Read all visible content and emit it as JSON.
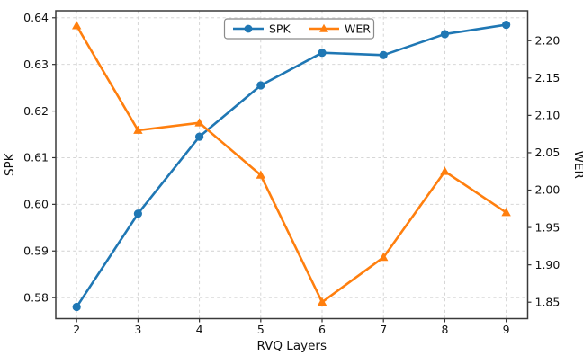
{
  "chart_data": {
    "type": "line",
    "title": "",
    "grid": true,
    "legend_position": "top-center",
    "legend_entries": [
      "SPK",
      "WER"
    ],
    "x_axis": {
      "label": "RVQ Layers",
      "ticks": [
        2,
        3,
        4,
        5,
        6,
        7,
        8,
        9
      ],
      "lim": [
        1.66,
        9.35
      ]
    },
    "left_axis": {
      "label": "SPK",
      "ticks": [
        0.58,
        0.59,
        0.6,
        0.61,
        0.62,
        0.63,
        0.64
      ],
      "lim": [
        0.5755,
        0.6415
      ],
      "tick_decimals": 2
    },
    "right_axis": {
      "label": "WER",
      "ticks": [
        1.85,
        1.9,
        1.95,
        2.0,
        2.05,
        2.1,
        2.15,
        2.2
      ],
      "lim": [
        1.828,
        2.24
      ],
      "tick_decimals": 2
    },
    "x": [
      2,
      3,
      4,
      5,
      6,
      7,
      8,
      9
    ],
    "series": [
      {
        "name": "SPK",
        "axis": "left",
        "color": "#1f77b4",
        "marker": "circle",
        "values": [
          0.578,
          0.598,
          0.6145,
          0.6255,
          0.6325,
          0.632,
          0.6365,
          0.6385
        ]
      },
      {
        "name": "WER",
        "axis": "right",
        "color": "#ff7f0e",
        "marker": "triangle",
        "values": [
          2.22,
          2.08,
          2.09,
          2.02,
          1.85,
          1.91,
          2.025,
          1.97
        ]
      }
    ],
    "colors": {
      "grid": "#c9c9c9",
      "spine": "#3a3a3a",
      "tick": "#333333",
      "text": "#111111",
      "legend_border": "#8a8a8a",
      "background": "#ffffff"
    }
  }
}
